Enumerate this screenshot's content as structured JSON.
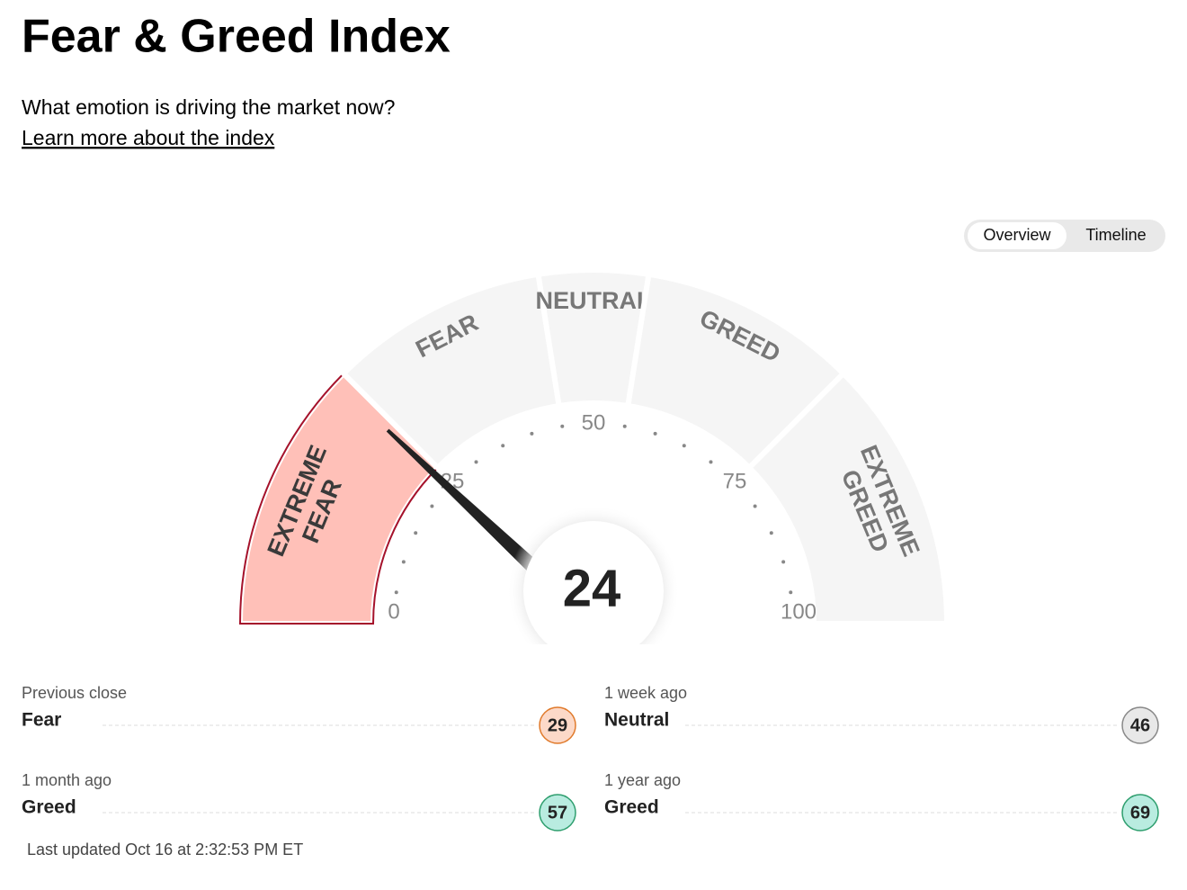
{
  "header": {
    "title": "Fear & Greed Index",
    "subtitle": "What emotion is driving the market now?",
    "link": "Learn more about the index"
  },
  "tabs": {
    "items": [
      "Overview",
      "Timeline"
    ],
    "active": 0
  },
  "gauge": {
    "value": 24,
    "min": 0,
    "max": 100,
    "ticks": [
      0,
      25,
      50,
      75,
      100
    ],
    "fill": "#f5f5f5",
    "active_fill": "#ffc0b8",
    "active_stroke": "#a5122b",
    "segments": [
      {
        "lines": [
          "EXTREME",
          "FEAR"
        ],
        "from": 0,
        "to": 25
      },
      {
        "lines": [
          "FEAR"
        ],
        "from": 25,
        "to": 45
      },
      {
        "lines": [
          "NEUTRAL"
        ],
        "from": 45,
        "to": 55
      },
      {
        "lines": [
          "GREED"
        ],
        "from": 55,
        "to": 75
      },
      {
        "lines": [
          "EXTREME",
          "GREED"
        ],
        "from": 75,
        "to": 100
      }
    ]
  },
  "history": [
    {
      "label": "Previous close",
      "rating": "Fear",
      "value": 29,
      "fill": "#fcd9c8",
      "stroke": "#e07a2b"
    },
    {
      "label": "1 week ago",
      "rating": "Neutral",
      "value": 46,
      "fill": "#e8e8e8",
      "stroke": "#888888"
    },
    {
      "label": "1 month ago",
      "rating": "Greed",
      "value": 57,
      "fill": "#b9ece0",
      "stroke": "#2e9e6e"
    },
    {
      "label": "1 year ago",
      "rating": "Greed",
      "value": 69,
      "fill": "#b9ece0",
      "stroke": "#2e9e6e"
    }
  ],
  "updated": "Last updated Oct 16 at 2:32:53 PM ET"
}
